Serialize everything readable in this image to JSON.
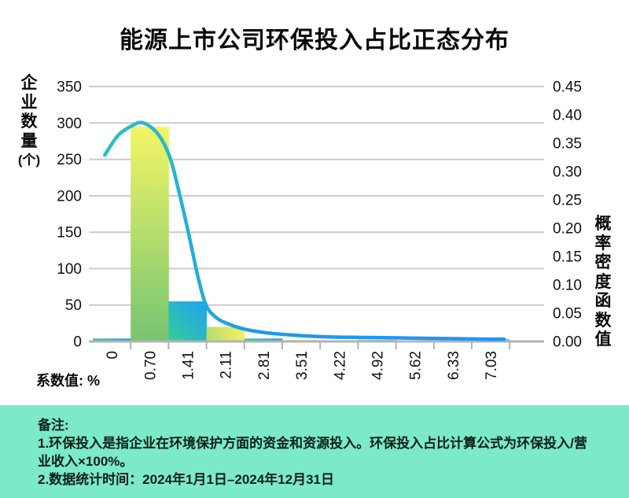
{
  "title": "能源上市公司环保投入占比正态分布",
  "x_axis_caption": "系数值: %",
  "colors": {
    "footer_bg": "#7CE9C8",
    "grid": "#cbcbcb",
    "axis": "#b3b3b3",
    "text": "#111111",
    "curve_gradient": [
      {
        "o": "0%",
        "c": "#2ec4bb"
      },
      {
        "o": "18%",
        "c": "#28b6cd"
      },
      {
        "o": "35%",
        "c": "#2099e6"
      },
      {
        "o": "60%",
        "c": "#1f98f0"
      },
      {
        "o": "100%",
        "c": "#2196f3"
      }
    ]
  },
  "chart_data": {
    "type": "histogram_with_density_line",
    "title": "能源上市公司环保投入占比正态分布",
    "categories": [
      "0",
      "0.70",
      "1.41",
      "2.11",
      "2.81",
      "3.51",
      "4.22",
      "4.92",
      "5.62",
      "6.33",
      "7.03"
    ],
    "x_axis": {
      "caption": "系数值: %",
      "tick_labels_rotation_deg": -90
    },
    "left_axis": {
      "title": "企业数量(个)",
      "title_lines": [
        "企",
        "业",
        "数",
        "量",
        "(个)"
      ],
      "min": 0,
      "max": 350,
      "step": 50,
      "ticks": [
        "350",
        "300",
        "250",
        "200",
        "150",
        "100",
        "50",
        "0"
      ]
    },
    "right_axis": {
      "title": "概率密度函数值",
      "title_lines": [
        "概",
        "率",
        "密",
        "度",
        "函",
        "数",
        "值"
      ],
      "min": 0,
      "max": 0.45,
      "step": 0.05,
      "ticks": [
        "0.45",
        "0.40",
        "0.35",
        "0.30",
        "0.25",
        "0.20",
        "0.15",
        "0.10",
        "0.05",
        "0.00"
      ]
    },
    "grid": true,
    "bars": [
      {
        "label": "0",
        "value": 4,
        "color": {
          "dir": "h",
          "from": "#2fc4b8",
          "to": "#1f9ff2"
        }
      },
      {
        "label": "0.70",
        "value": 295,
        "color": {
          "dir": "v",
          "from": "#f3f565",
          "to": "#76c573"
        }
      },
      {
        "label": "1.41",
        "value": 55,
        "color": {
          "dir": "d",
          "from": "#35cf96",
          "to": "#1f9ff2"
        }
      },
      {
        "label": "2.11",
        "value": 20,
        "color": {
          "dir": "h",
          "from": "#b9da6b",
          "to": "#f1f364"
        }
      },
      {
        "label": "2.81",
        "value": 4,
        "color": {
          "dir": "h",
          "from": "#2fcba4",
          "to": "#1f9ff2"
        }
      },
      {
        "label": "3.51",
        "value": 2,
        "color": {
          "dir": "h",
          "from": "#cfe77e",
          "to": "#e9f096"
        }
      },
      {
        "label": "4.22",
        "value": 1,
        "color": {
          "dir": "h",
          "from": "#f2bcc8",
          "to": "#f0c4cf"
        }
      },
      {
        "label": "4.92",
        "value": 2,
        "color": {
          "dir": "h",
          "from": "#36cd8e",
          "to": "#2aa8e8"
        }
      },
      {
        "label": "5.62",
        "value": 1,
        "color": {
          "dir": "h",
          "from": "#e0ecb0",
          "to": "#e8f0bc"
        }
      },
      {
        "label": "6.33",
        "value": 2,
        "color": {
          "dir": "h",
          "from": "#e8efa8",
          "to": "#3ecf7f"
        }
      },
      {
        "label": "7.03",
        "value": 3,
        "color": {
          "dir": "h",
          "from": "#2aa4ee",
          "to": "#5fbcf4"
        }
      }
    ],
    "bar_series_name": "企业数量",
    "line_series": {
      "name": "概率密度函数值",
      "points": [
        [
          -0.13,
          0.329
        ],
        [
          0.12,
          0.364
        ],
        [
          0.38,
          0.381
        ],
        [
          0.58,
          0.386
        ],
        [
          0.85,
          0.367
        ],
        [
          1.08,
          0.325
        ],
        [
          1.25,
          0.263
        ],
        [
          1.43,
          0.189
        ],
        [
          1.6,
          0.114
        ],
        [
          1.75,
          0.064
        ],
        [
          1.94,
          0.042
        ],
        [
          2.16,
          0.031
        ],
        [
          2.45,
          0.022
        ],
        [
          2.89,
          0.015
        ],
        [
          3.4,
          0.011
        ],
        [
          4.05,
          0.008
        ],
        [
          4.78,
          0.007
        ],
        [
          5.51,
          0.006
        ],
        [
          6.24,
          0.005
        ],
        [
          6.97,
          0.004
        ],
        [
          7.28,
          0.004
        ]
      ]
    }
  },
  "notes": {
    "heading": "备注:",
    "items": [
      "1.环保投入是指企业在环境保护方面的资金和资源投入。环保投入占比计算公式为环保投入/营业收入×100%。",
      "2.数据统计时间：2024年1月1日–2024年12月31日"
    ]
  }
}
